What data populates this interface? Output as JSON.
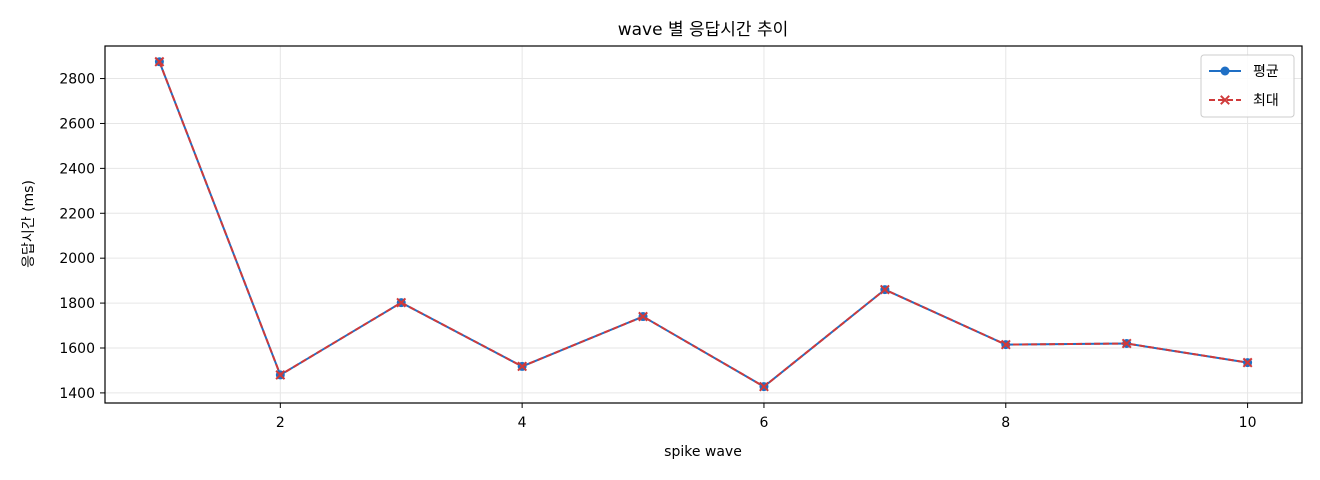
{
  "chart_data": {
    "type": "line",
    "title": "wave 별 응답시간 추이",
    "xlabel": "spike wave",
    "ylabel": "응답시간 (ms)",
    "x": [
      1,
      2,
      3,
      4,
      5,
      6,
      7,
      8,
      9,
      10
    ],
    "xlim": [
      0.55,
      10.45
    ],
    "ylim": [
      1355,
      2945
    ],
    "xticks": [
      2,
      4,
      6,
      8,
      10
    ],
    "yticks": [
      1400,
      1600,
      1800,
      2000,
      2200,
      2400,
      2600,
      2800
    ],
    "grid": true,
    "legend_position": "top-right",
    "series": [
      {
        "name": "평균",
        "values": [
          2875,
          1480,
          1802,
          1518,
          1740,
          1428,
          1860,
          1615,
          1620,
          1535
        ],
        "color": "#1f6fc5",
        "line_style": "solid",
        "marker": "circle"
      },
      {
        "name": "최대",
        "values": [
          2875,
          1480,
          1802,
          1518,
          1740,
          1428,
          1860,
          1615,
          1620,
          1535
        ],
        "color": "#d03a3a",
        "line_style": "dashed",
        "marker": "x"
      }
    ]
  }
}
